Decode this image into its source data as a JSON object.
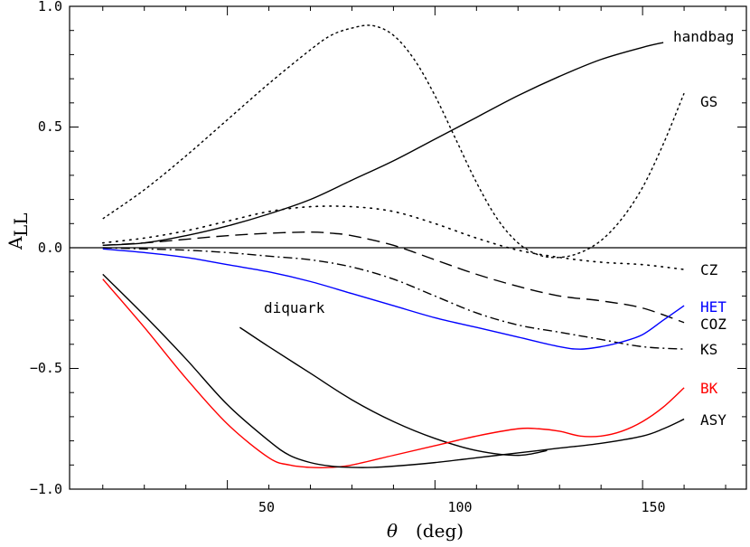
{
  "chart_data": {
    "type": "line",
    "xlabel": "θ (deg)",
    "ylabel": "A_LL",
    "xlim": [
      12,
      175
    ],
    "ylim": [
      -1.0,
      1.0
    ],
    "xticks": [
      50,
      100,
      150
    ],
    "yticks": [
      -1.0,
      -0.5,
      0.0,
      0.5,
      1.0
    ],
    "xtick_labels": [
      "50",
      "100",
      "150"
    ],
    "ytick_labels": [
      "−1.0",
      "−0.5",
      "0.0",
      "0.5",
      "1.0"
    ],
    "zero_line": true,
    "grid": false,
    "series": [
      {
        "name": "handbag",
        "color": "#000000",
        "style": "solid",
        "x": [
          20,
          30,
          40,
          50,
          60,
          70,
          80,
          90,
          100,
          110,
          120,
          130,
          140,
          150,
          155
        ],
        "y": [
          0.01,
          0.02,
          0.05,
          0.09,
          0.14,
          0.2,
          0.28,
          0.36,
          0.45,
          0.54,
          0.63,
          0.71,
          0.78,
          0.83,
          0.85
        ]
      },
      {
        "name": "GS",
        "color": "#000000",
        "style": "dotted",
        "x": [
          20,
          30,
          40,
          50,
          60,
          70,
          75,
          80,
          85,
          90,
          95,
          100,
          105,
          110,
          115,
          120,
          125,
          130,
          135,
          140,
          145,
          150,
          155,
          160
        ],
        "y": [
          0.12,
          0.24,
          0.38,
          0.53,
          0.68,
          0.82,
          0.88,
          0.91,
          0.92,
          0.88,
          0.78,
          0.63,
          0.45,
          0.27,
          0.12,
          0.02,
          -0.03,
          -0.04,
          -0.02,
          0.03,
          0.12,
          0.25,
          0.43,
          0.64
        ]
      },
      {
        "name": "CZ",
        "color": "#000000",
        "style": "sparse-dot",
        "x": [
          20,
          30,
          40,
          50,
          60,
          70,
          80,
          90,
          100,
          110,
          120,
          130,
          140,
          150,
          160
        ],
        "y": [
          0.02,
          0.04,
          0.07,
          0.11,
          0.15,
          0.17,
          0.17,
          0.15,
          0.1,
          0.04,
          -0.01,
          -0.04,
          -0.06,
          -0.07,
          -0.09
        ]
      },
      {
        "name": "COZ",
        "color": "#000000",
        "style": "dashed",
        "x": [
          20,
          30,
          40,
          50,
          60,
          70,
          75,
          80,
          90,
          100,
          110,
          120,
          130,
          140,
          150,
          160
        ],
        "y": [
          0.01,
          0.02,
          0.035,
          0.05,
          0.06,
          0.065,
          0.06,
          0.05,
          0.01,
          -0.05,
          -0.11,
          -0.16,
          -0.2,
          -0.22,
          -0.25,
          -0.31
        ]
      },
      {
        "name": "KS",
        "color": "#000000",
        "style": "dash-dot",
        "x": [
          20,
          30,
          40,
          50,
          60,
          70,
          80,
          90,
          100,
          110,
          120,
          130,
          140,
          150,
          160
        ],
        "y": [
          0.0,
          -0.005,
          -0.01,
          -0.02,
          -0.035,
          -0.05,
          -0.08,
          -0.13,
          -0.2,
          -0.27,
          -0.32,
          -0.35,
          -0.38,
          -0.41,
          -0.42
        ]
      },
      {
        "name": "HET",
        "color": "#0000ff",
        "style": "solid",
        "x": [
          20,
          30,
          40,
          50,
          60,
          70,
          80,
          90,
          100,
          110,
          120,
          130,
          135,
          140,
          145,
          150,
          155,
          160
        ],
        "y": [
          -0.005,
          -0.02,
          -0.04,
          -0.07,
          -0.1,
          -0.14,
          -0.19,
          -0.24,
          -0.29,
          -0.33,
          -0.37,
          -0.41,
          -0.42,
          -0.41,
          -0.39,
          -0.36,
          -0.3,
          -0.24
        ]
      },
      {
        "name": "diquark",
        "color": "#000000",
        "style": "solid",
        "x": [
          53,
          60,
          70,
          80,
          90,
          100,
          110,
          120,
          127
        ],
        "y": [
          -0.33,
          -0.41,
          -0.52,
          -0.63,
          -0.72,
          -0.79,
          -0.84,
          -0.86,
          -0.84
        ]
      },
      {
        "name": "BK",
        "color": "#ff0000",
        "style": "solid",
        "x": [
          20,
          30,
          40,
          50,
          60,
          65,
          70,
          75,
          80,
          90,
          100,
          110,
          120,
          125,
          130,
          135,
          140,
          145,
          150,
          155,
          160
        ],
        "y": [
          -0.13,
          -0.33,
          -0.54,
          -0.73,
          -0.87,
          -0.9,
          -0.91,
          -0.91,
          -0.9,
          -0.86,
          -0.82,
          -0.78,
          -0.75,
          -0.75,
          -0.76,
          -0.78,
          -0.78,
          -0.76,
          -0.72,
          -0.66,
          -0.58
        ]
      },
      {
        "name": "ASY",
        "color": "#000000",
        "style": "solid",
        "x": [
          20,
          30,
          40,
          50,
          60,
          65,
          70,
          75,
          80,
          85,
          90,
          100,
          110,
          120,
          130,
          140,
          150,
          155,
          160
        ],
        "y": [
          -0.11,
          -0.28,
          -0.46,
          -0.65,
          -0.8,
          -0.86,
          -0.89,
          -0.905,
          -0.91,
          -0.91,
          -0.905,
          -0.89,
          -0.87,
          -0.85,
          -0.83,
          -0.81,
          -0.78,
          -0.75,
          -0.71
        ]
      }
    ],
    "labels": {
      "handbag": "handbag",
      "GS": "GS",
      "CZ": "CZ",
      "HET": "HET",
      "COZ": "COZ",
      "KS": "KS",
      "BK": "BK",
      "ASY": "ASY",
      "diquark": "diquark"
    }
  }
}
